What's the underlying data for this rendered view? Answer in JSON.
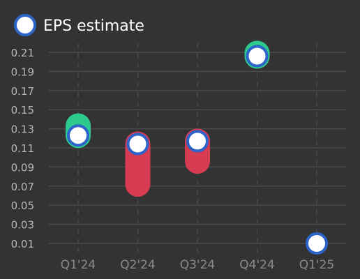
{
  "legend": {
    "label": "EPS estimate"
  },
  "colors": {
    "background": "#333333",
    "grid": "#4a4a4a",
    "tick_text": "#b8b8b8",
    "category_text": "#8a8a8a",
    "beat": "#2ec98c",
    "miss": "#d83c52",
    "estimate_fill": "#ffffff",
    "estimate_stroke": "#2c64c9",
    "legend_text": "#ffffff"
  },
  "chart_data": {
    "type": "scatter",
    "title": "",
    "xlabel": "",
    "ylabel": "",
    "categories": [
      "Q1'24",
      "Q2'24",
      "Q3'24",
      "Q4'24",
      "Q1'25"
    ],
    "y_ticks": [
      "0.01",
      "0.03",
      "0.05",
      "0.07",
      "0.09",
      "0.11",
      "0.13",
      "0.15",
      "0.17",
      "0.19",
      "0.21"
    ],
    "ylim": [
      0.0,
      0.22
    ],
    "grid": true,
    "legend_position": "top-left",
    "series": [
      {
        "name": "EPS estimate",
        "values": [
          0.123,
          0.114,
          0.117,
          0.206,
          0.01
        ]
      },
      {
        "values": [
          0.133,
          0.072,
          0.096,
          0.209,
          null
        ]
      }
    ]
  }
}
